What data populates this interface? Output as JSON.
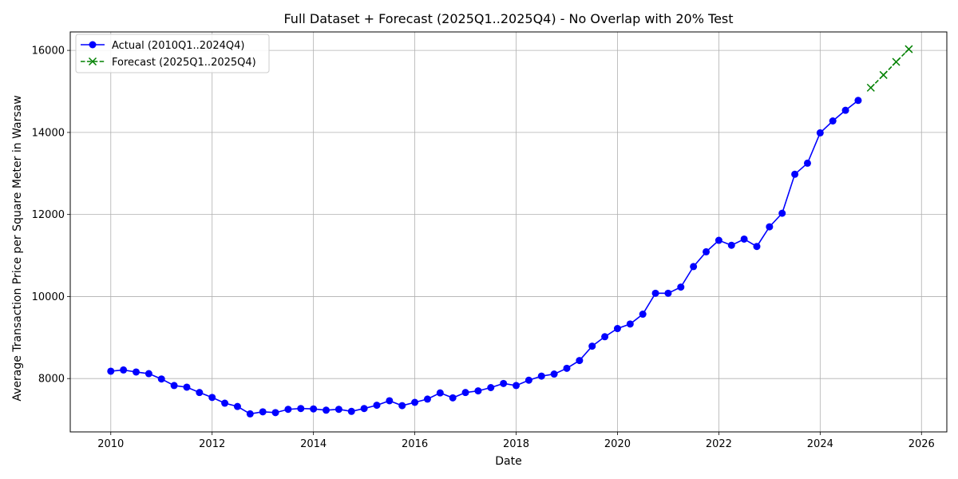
{
  "chart_data": {
    "type": "line",
    "title": "Full Dataset + Forecast (2025Q1..2025Q4) - No Overlap with 20% Test",
    "xlabel": "Date",
    "ylabel": "Average Transaction Price per Square Meter in Warsaw",
    "xlim": [
      2009.2,
      2026.5
    ],
    "ylim": [
      6700,
      16450
    ],
    "x_ticks": [
      2010,
      2012,
      2014,
      2016,
      2018,
      2020,
      2022,
      2024,
      2026
    ],
    "x_tick_labels": [
      "2010",
      "2012",
      "2014",
      "2016",
      "2018",
      "2020",
      "2022",
      "2024",
      "2026"
    ],
    "y_ticks": [
      8000,
      10000,
      12000,
      14000,
      16000
    ],
    "y_tick_labels": [
      "8000",
      "10000",
      "12000",
      "14000",
      "16000"
    ],
    "grid": true,
    "legend_position": "top-left",
    "series": [
      {
        "name": "Actual (2010Q1..2024Q4)",
        "color": "#0000ff",
        "line_style": "solid",
        "marker": "circle",
        "x": [
          "2010-01-01",
          "2010-04-01",
          "2010-07-01",
          "2010-10-01",
          "2011-01-01",
          "2011-04-01",
          "2011-07-01",
          "2011-10-01",
          "2012-01-01",
          "2012-04-01",
          "2012-07-01",
          "2012-10-01",
          "2013-01-01",
          "2013-04-01",
          "2013-07-01",
          "2013-10-01",
          "2014-01-01",
          "2014-04-01",
          "2014-07-01",
          "2014-10-01",
          "2015-01-01",
          "2015-04-01",
          "2015-07-01",
          "2015-10-01",
          "2016-01-01",
          "2016-04-01",
          "2016-07-01",
          "2016-10-01",
          "2017-01-01",
          "2017-04-01",
          "2017-07-01",
          "2017-10-01",
          "2018-01-01",
          "2018-04-01",
          "2018-07-01",
          "2018-10-01",
          "2019-01-01",
          "2019-04-01",
          "2019-07-01",
          "2019-10-01",
          "2020-01-01",
          "2020-04-01",
          "2020-07-01",
          "2020-10-01",
          "2021-01-01",
          "2021-04-01",
          "2021-07-01",
          "2021-10-01",
          "2022-01-01",
          "2022-04-01",
          "2022-07-01",
          "2022-10-01",
          "2023-01-01",
          "2023-04-01",
          "2023-07-01",
          "2023-10-01",
          "2024-01-01",
          "2024-04-01",
          "2024-07-01",
          "2024-10-01"
        ],
        "values": [
          8180,
          8210,
          8160,
          8120,
          7990,
          7830,
          7790,
          7660,
          7540,
          7400,
          7320,
          7140,
          7190,
          7170,
          7250,
          7270,
          7260,
          7230,
          7250,
          7200,
          7270,
          7350,
          7460,
          7340,
          7420,
          7500,
          7650,
          7530,
          7660,
          7700,
          7780,
          7880,
          7830,
          7960,
          8060,
          8110,
          8250,
          8440,
          8790,
          9020,
          9220,
          9330,
          9570,
          10080,
          10080,
          10230,
          10730,
          11090,
          11370,
          11250,
          11400,
          11220,
          11700,
          12030,
          12980,
          13250,
          13990,
          14280,
          14540,
          14780
        ]
      },
      {
        "name": "Forecast (2025Q1..2025Q4)",
        "color": "#008000",
        "line_style": "dashed",
        "marker": "x",
        "x": [
          "2025-01-01",
          "2025-04-01",
          "2025-07-01",
          "2025-10-01"
        ],
        "values": [
          15090,
          15400,
          15720,
          16030
        ]
      }
    ]
  }
}
